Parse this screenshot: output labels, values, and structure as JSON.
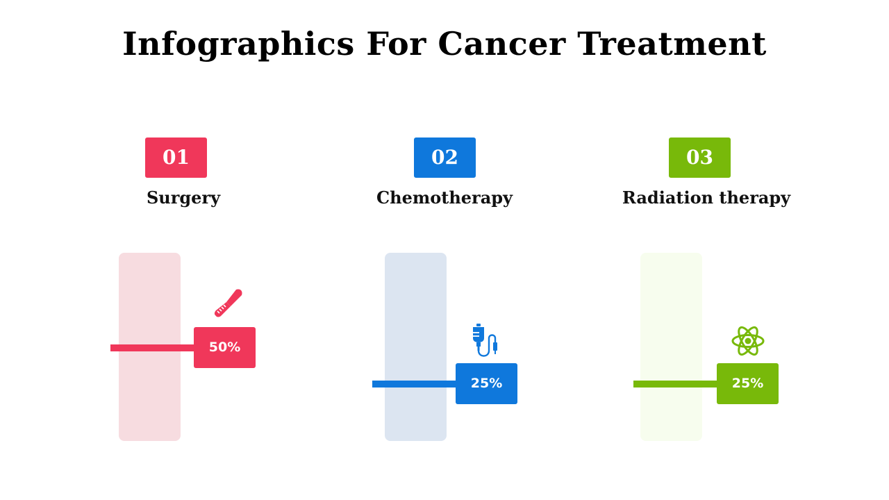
{
  "title": "Infographics For Cancer Treatment",
  "chart_data": {
    "type": "bar",
    "title": "Infographics For Cancer Treatment",
    "categories": [
      "Surgery",
      "Chemotherapy",
      "Radiation therapy"
    ],
    "numbers": [
      "01",
      "02",
      "03"
    ],
    "values": [
      50,
      25,
      25
    ],
    "value_labels": [
      "50%",
      "25%",
      "25%"
    ],
    "ylim": [
      0,
      100
    ],
    "colors": [
      "#f0375a",
      "#0f78dc",
      "#78b90a"
    ],
    "track_colors": [
      "#f7dce0",
      "#dce5f1",
      "#f7fdee"
    ],
    "icons": [
      "scalpel-icon",
      "iv-drip-icon",
      "atom-icon"
    ]
  }
}
